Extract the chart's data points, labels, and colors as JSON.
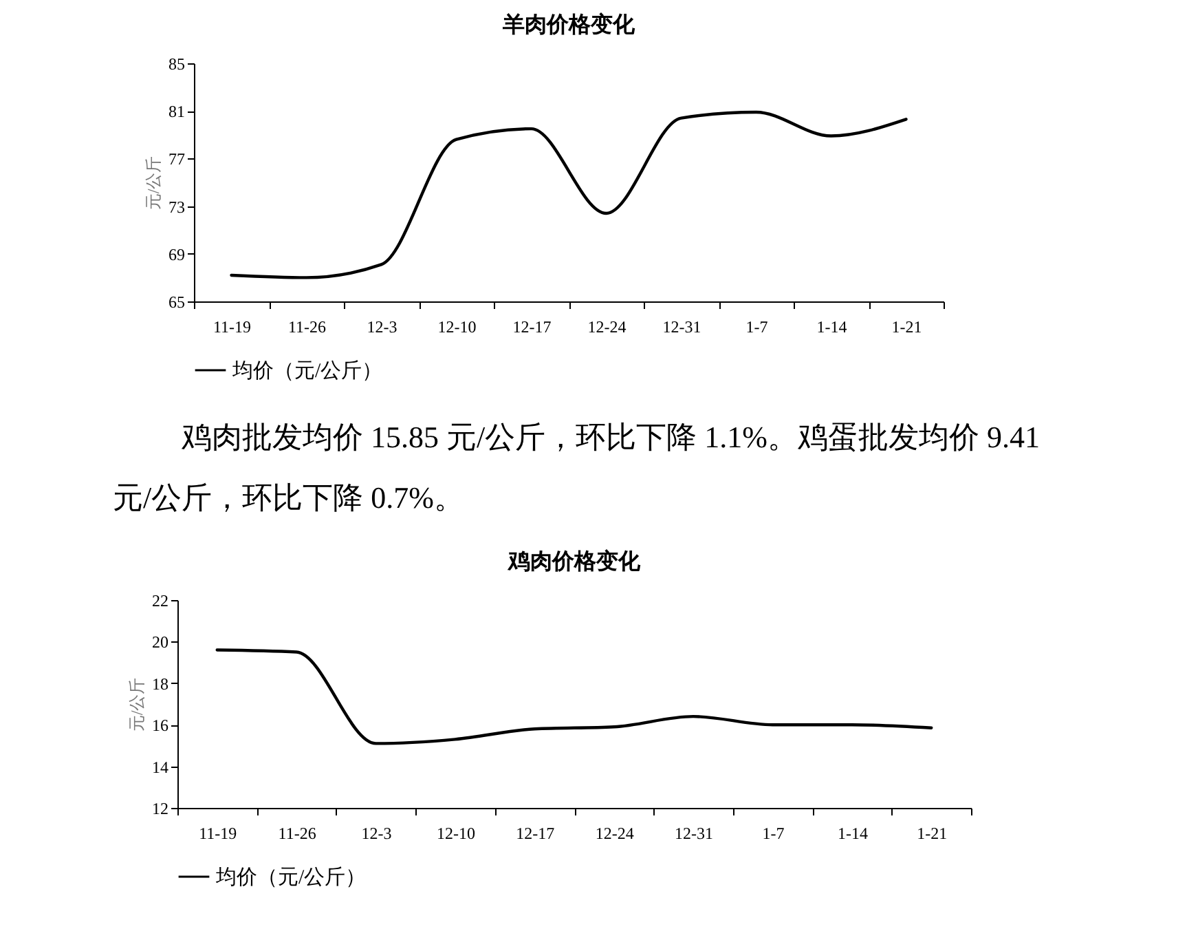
{
  "chart_data": [
    {
      "type": "line",
      "title": "羊肉价格变化",
      "ylabel": "元/公斤",
      "categories": [
        "11-19",
        "11-26",
        "12-3",
        "12-10",
        "12-17",
        "12-24",
        "12-31",
        "1-7",
        "1-14",
        "1-21"
      ],
      "series": [
        {
          "name": "均价（元/公斤）",
          "color": "#000000",
          "values": [
            67.2,
            67.0,
            68.1,
            78.6,
            79.5,
            72.4,
            80.4,
            80.9,
            78.9,
            80.3
          ]
        }
      ],
      "ylim": [
        65,
        85
      ],
      "yticks": [
        65,
        69,
        73,
        77,
        81,
        85
      ],
      "grid": false,
      "legend": "bottom"
    },
    {
      "type": "line",
      "title": "鸡肉价格变化",
      "ylabel": "元/公斤",
      "categories": [
        "11-19",
        "11-26",
        "12-3",
        "12-10",
        "12-17",
        "12-24",
        "12-31",
        "1-7",
        "1-14",
        "1-21"
      ],
      "series": [
        {
          "name": "均价（元/公斤）",
          "color": "#000000",
          "values": [
            19.6,
            19.5,
            15.1,
            15.3,
            15.8,
            15.9,
            16.4,
            16.0,
            16.0,
            15.85
          ]
        }
      ],
      "ylim": [
        12,
        22
      ],
      "yticks": [
        12,
        14,
        16,
        18,
        20,
        22
      ],
      "grid": false,
      "legend": "bottom",
      "annotations": [
        "鸡肉批发均价 15.85 元/公斤，环比下降 1.1%。鸡蛋批发均价 9.41 元/公斤，环比下降 0.7%。"
      ]
    }
  ]
}
